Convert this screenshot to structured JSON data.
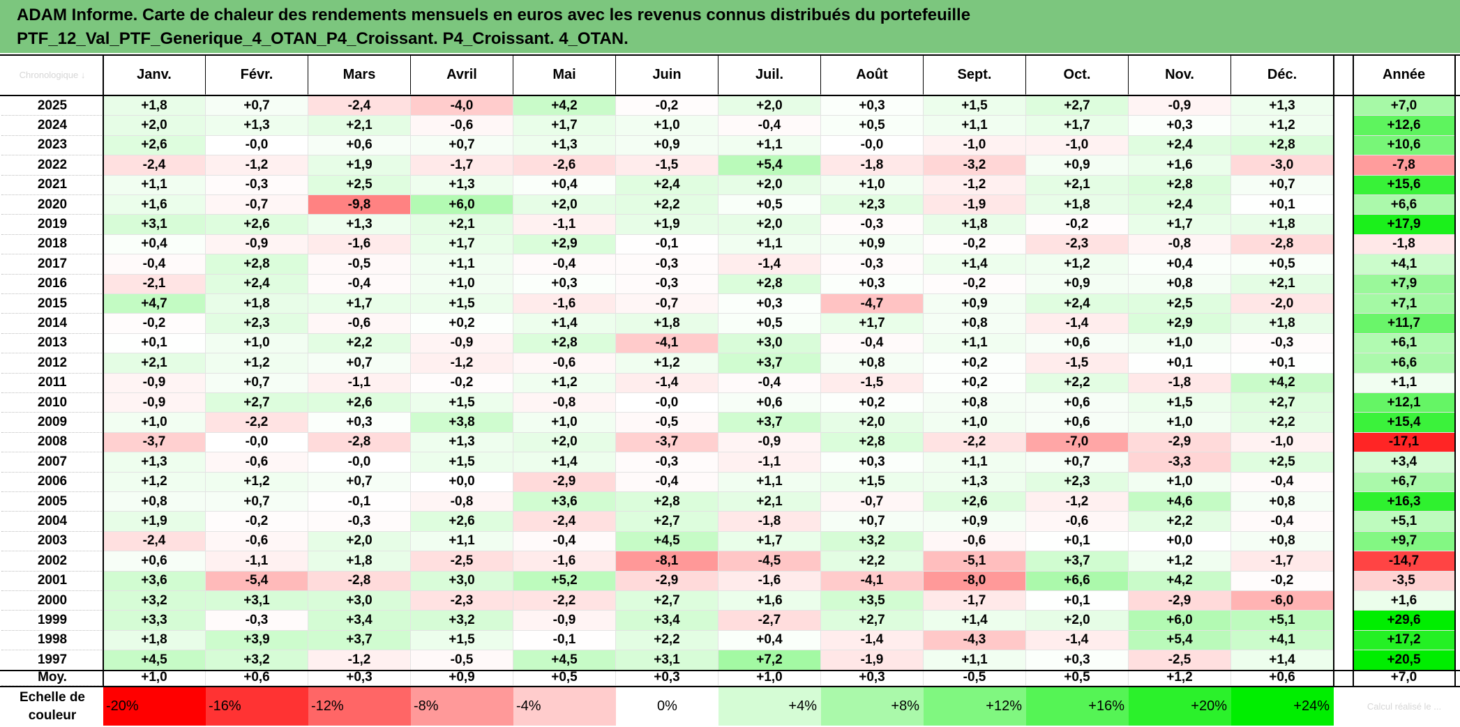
{
  "header": {
    "line1": "ADAM Informe. Carte de chaleur des rendements mensuels en euros avec les revenus connus distribués du portefeuille",
    "line2": "PTF_12_Val_PTF_Generique_4_OTAN_P4_Croissant. P4_Croissant. 4_OTAN."
  },
  "corner_label": "Chronologique ↓",
  "footer_label": "Echelle de couleur",
  "footer_faint": "Calcul réalisé le ...",
  "colors": {
    "header_bg": "#7cc67e",
    "negative": "#ff0000",
    "positive": "#00ee00",
    "neutral": "#ffffff"
  },
  "chart_data": {
    "type": "heatmap",
    "columns": [
      "Janv.",
      "Févr.",
      "Mars",
      "Avril",
      "Mai",
      "Juin",
      "Juil.",
      "Août",
      "Sept.",
      "Oct.",
      "Nov.",
      "Déc."
    ],
    "year_column": "Année",
    "rows": [
      {
        "label": "2025",
        "values": [
          "+1,8",
          "+0,7",
          "-2,4",
          "-4,0",
          "+4,2",
          "-0,2",
          "+2,0",
          "+0,3",
          "+1,5",
          "+2,7",
          "-0,9",
          "+1,3"
        ],
        "year": "+7,0"
      },
      {
        "label": "2024",
        "values": [
          "+2,0",
          "+1,3",
          "+2,1",
          "-0,6",
          "+1,7",
          "+1,0",
          "-0,4",
          "+0,5",
          "+1,1",
          "+1,7",
          "+0,3",
          "+1,2"
        ],
        "year": "+12,6"
      },
      {
        "label": "2023",
        "values": [
          "+2,6",
          "-0,0",
          "+0,6",
          "+0,7",
          "+1,3",
          "+0,9",
          "+1,1",
          "-0,0",
          "-1,0",
          "-1,0",
          "+2,4",
          "+2,8"
        ],
        "year": "+10,6"
      },
      {
        "label": "2022",
        "values": [
          "-2,4",
          "-1,2",
          "+1,9",
          "-1,7",
          "-2,6",
          "-1,5",
          "+5,4",
          "-1,8",
          "-3,2",
          "+0,9",
          "+1,6",
          "-3,0"
        ],
        "year": "-7,8"
      },
      {
        "label": "2021",
        "values": [
          "+1,1",
          "-0,3",
          "+2,5",
          "+1,3",
          "+0,4",
          "+2,4",
          "+2,0",
          "+1,0",
          "-1,2",
          "+2,1",
          "+2,8",
          "+0,7"
        ],
        "year": "+15,6"
      },
      {
        "label": "2020",
        "values": [
          "+1,6",
          "-0,7",
          "-9,8",
          "+6,0",
          "+2,0",
          "+2,2",
          "+0,5",
          "+2,3",
          "-1,9",
          "+1,8",
          "+2,4",
          "+0,1"
        ],
        "year": "+6,6"
      },
      {
        "label": "2019",
        "values": [
          "+3,1",
          "+2,6",
          "+1,3",
          "+2,1",
          "-1,1",
          "+1,9",
          "+2,0",
          "-0,3",
          "+1,8",
          "-0,2",
          "+1,7",
          "+1,8"
        ],
        "year": "+17,9"
      },
      {
        "label": "2018",
        "values": [
          "+0,4",
          "-0,9",
          "-1,6",
          "+1,7",
          "+2,9",
          "-0,1",
          "+1,1",
          "+0,9",
          "-0,2",
          "-2,3",
          "-0,8",
          "-2,8"
        ],
        "year": "-1,8"
      },
      {
        "label": "2017",
        "values": [
          "-0,4",
          "+2,8",
          "-0,5",
          "+1,1",
          "-0,4",
          "-0,3",
          "-1,4",
          "-0,3",
          "+1,4",
          "+1,2",
          "+0,4",
          "+0,5"
        ],
        "year": "+4,1"
      },
      {
        "label": "2016",
        "values": [
          "-2,1",
          "+2,4",
          "-0,4",
          "+1,0",
          "+0,3",
          "-0,3",
          "+2,8",
          "+0,3",
          "-0,2",
          "+0,9",
          "+0,8",
          "+2,1"
        ],
        "year": "+7,9"
      },
      {
        "label": "2015",
        "values": [
          "+4,7",
          "+1,8",
          "+1,7",
          "+1,5",
          "-1,6",
          "-0,7",
          "+0,3",
          "-4,7",
          "+0,9",
          "+2,4",
          "+2,5",
          "-2,0"
        ],
        "year": "+7,1"
      },
      {
        "label": "2014",
        "values": [
          "-0,2",
          "+2,3",
          "-0,6",
          "+0,2",
          "+1,4",
          "+1,8",
          "+0,5",
          "+1,7",
          "+0,8",
          "-1,4",
          "+2,9",
          "+1,8"
        ],
        "year": "+11,7"
      },
      {
        "label": "2013",
        "values": [
          "+0,1",
          "+1,0",
          "+2,2",
          "-0,9",
          "+2,8",
          "-4,1",
          "+3,0",
          "-0,4",
          "+1,1",
          "+0,6",
          "+1,0",
          "-0,3"
        ],
        "year": "+6,1"
      },
      {
        "label": "2012",
        "values": [
          "+2,1",
          "+1,2",
          "+0,7",
          "-1,2",
          "-0,6",
          "+1,2",
          "+3,7",
          "+0,8",
          "+0,2",
          "-1,5",
          "+0,1",
          "+0,1"
        ],
        "year": "+6,6"
      },
      {
        "label": "2011",
        "values": [
          "-0,9",
          "+0,7",
          "-1,1",
          "-0,2",
          "+1,2",
          "-1,4",
          "-0,4",
          "-1,5",
          "+0,2",
          "+2,2",
          "-1,8",
          "+4,2"
        ],
        "year": "+1,1"
      },
      {
        "label": "2010",
        "values": [
          "-0,9",
          "+2,7",
          "+2,6",
          "+1,5",
          "-0,8",
          "-0,0",
          "+0,6",
          "+0,2",
          "+0,8",
          "+0,6",
          "+1,5",
          "+2,7"
        ],
        "year": "+12,1"
      },
      {
        "label": "2009",
        "values": [
          "+1,0",
          "-2,2",
          "+0,3",
          "+3,8",
          "+1,0",
          "-0,5",
          "+3,7",
          "+2,0",
          "+1,0",
          "+0,6",
          "+1,0",
          "+2,2"
        ],
        "year": "+15,4"
      },
      {
        "label": "2008",
        "values": [
          "-3,7",
          "-0,0",
          "-2,8",
          "+1,3",
          "+2,0",
          "-3,7",
          "-0,9",
          "+2,8",
          "-2,2",
          "-7,0",
          "-2,9",
          "-1,0"
        ],
        "year": "-17,1"
      },
      {
        "label": "2007",
        "values": [
          "+1,3",
          "-0,6",
          "-0,0",
          "+1,5",
          "+1,4",
          "-0,3",
          "-1,1",
          "+0,3",
          "+1,1",
          "+0,7",
          "-3,3",
          "+2,5"
        ],
        "year": "+3,4"
      },
      {
        "label": "2006",
        "values": [
          "+1,2",
          "+1,2",
          "+0,7",
          "+0,0",
          "-2,9",
          "-0,4",
          "+1,1",
          "+1,5",
          "+1,3",
          "+2,3",
          "+1,0",
          "-0,4"
        ],
        "year": "+6,7"
      },
      {
        "label": "2005",
        "values": [
          "+0,8",
          "+0,7",
          "-0,1",
          "-0,8",
          "+3,6",
          "+2,8",
          "+2,1",
          "-0,7",
          "+2,6",
          "-1,2",
          "+4,6",
          "+0,8"
        ],
        "year": "+16,3"
      },
      {
        "label": "2004",
        "values": [
          "+1,9",
          "-0,2",
          "-0,3",
          "+2,6",
          "-2,4",
          "+2,7",
          "-1,8",
          "+0,7",
          "+0,9",
          "-0,6",
          "+2,2",
          "-0,4"
        ],
        "year": "+5,1"
      },
      {
        "label": "2003",
        "values": [
          "-2,4",
          "-0,6",
          "+2,0",
          "+1,1",
          "-0,4",
          "+4,5",
          "+1,7",
          "+3,2",
          "-0,6",
          "+0,1",
          "+0,0",
          "+0,8"
        ],
        "year": "+9,7"
      },
      {
        "label": "2002",
        "values": [
          "+0,6",
          "-1,1",
          "+1,8",
          "-2,5",
          "-1,6",
          "-8,1",
          "-4,5",
          "+2,2",
          "-5,1",
          "+3,7",
          "+1,2",
          "-1,7"
        ],
        "year": "-14,7"
      },
      {
        "label": "2001",
        "values": [
          "+3,6",
          "-5,4",
          "-2,8",
          "+3,0",
          "+5,2",
          "-2,9",
          "-1,6",
          "-4,1",
          "-8,0",
          "+6,6",
          "+4,2",
          "-0,2"
        ],
        "year": "-3,5"
      },
      {
        "label": "2000",
        "values": [
          "+3,2",
          "+3,1",
          "+3,0",
          "-2,3",
          "-2,2",
          "+2,7",
          "+1,6",
          "+3,5",
          "-1,7",
          "+0,1",
          "-2,9",
          "-6,0"
        ],
        "year": "+1,6"
      },
      {
        "label": "1999",
        "values": [
          "+3,3",
          "-0,3",
          "+3,4",
          "+3,2",
          "-0,9",
          "+3,4",
          "-2,7",
          "+2,7",
          "+1,4",
          "+2,0",
          "+6,0",
          "+5,1"
        ],
        "year": "+29,6"
      },
      {
        "label": "1998",
        "values": [
          "+1,8",
          "+3,9",
          "+3,7",
          "+1,5",
          "-0,1",
          "+2,2",
          "+0,4",
          "-1,4",
          "-4,3",
          "-1,4",
          "+5,4",
          "+4,1"
        ],
        "year": "+17,2"
      },
      {
        "label": "1997",
        "values": [
          "+4,5",
          "+3,2",
          "-1,2",
          "-0,5",
          "+4,5",
          "+3,1",
          "+7,2",
          "-1,9",
          "+1,1",
          "+0,3",
          "-2,5",
          "+1,4"
        ],
        "year": "+20,5"
      }
    ],
    "average": {
      "label": "Moy.",
      "values": [
        "+1,0",
        "+0,6",
        "+0,3",
        "+0,9",
        "+0,5",
        "+0,3",
        "+1,0",
        "+0,3",
        "-0,5",
        "+0,5",
        "+1,2",
        "+0,6"
      ],
      "year": "+7,0"
    },
    "scale": [
      "-20%",
      "-16%",
      "-12%",
      "-8%",
      "-4%",
      "0%",
      "+4%",
      "+8%",
      "+12%",
      "+16%",
      "+20%",
      "+24%"
    ]
  }
}
